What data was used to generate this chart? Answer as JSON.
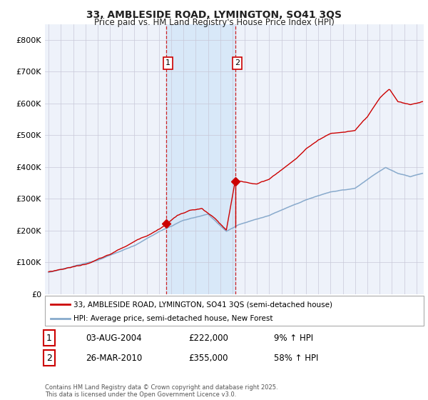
{
  "title_line1": "33, AMBLESIDE ROAD, LYMINGTON, SO41 3QS",
  "title_line2": "Price paid vs. HM Land Registry's House Price Index (HPI)",
  "ylim": [
    0,
    850000
  ],
  "xlim_start": 1994.7,
  "xlim_end": 2025.6,
  "bg_color": "#ffffff",
  "plot_bg_color": "#eef2fa",
  "grid_color": "#c8c8d8",
  "red_line_color": "#cc0000",
  "blue_line_color": "#88aacc",
  "highlight_bg": "#d8e8f8",
  "dashed_line_color": "#cc0000",
  "purchase1_date": 2004.585,
  "purchase1_price": 222000,
  "purchase1_label": "1",
  "purchase2_date": 2010.23,
  "purchase2_price": 355000,
  "purchase2_label": "2",
  "legend_entry1": "33, AMBLESIDE ROAD, LYMINGTON, SO41 3QS (semi-detached house)",
  "legend_entry2": "HPI: Average price, semi-detached house, New Forest",
  "table_row1_num": "1",
  "table_row1_date": "03-AUG-2004",
  "table_row1_price": "£222,000",
  "table_row1_hpi": "9% ↑ HPI",
  "table_row2_num": "2",
  "table_row2_date": "26-MAR-2010",
  "table_row2_price": "£355,000",
  "table_row2_hpi": "58% ↑ HPI",
  "footnote": "Contains HM Land Registry data © Crown copyright and database right 2025.\nThis data is licensed under the Open Government Licence v3.0.",
  "yticks": [
    0,
    100000,
    200000,
    300000,
    400000,
    500000,
    600000,
    700000,
    800000
  ],
  "ytick_labels": [
    "£0",
    "£100K",
    "£200K",
    "£300K",
    "£400K",
    "£500K",
    "£600K",
    "£700K",
    "£800K"
  ]
}
